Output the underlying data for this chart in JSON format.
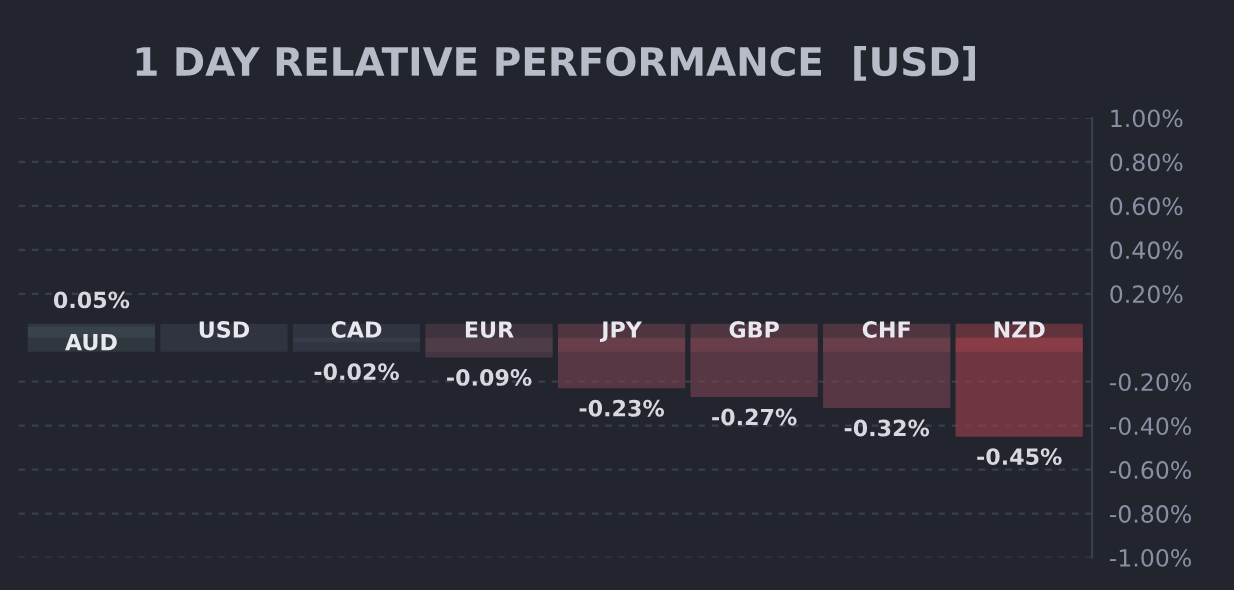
{
  "chart_data": {
    "type": "bar",
    "title": "1 DAY RELATIVE PERFORMANCE  [USD]",
    "categories": [
      "AUD",
      "USD",
      "CAD",
      "EUR",
      "JPY",
      "GBP",
      "CHF",
      "NZD"
    ],
    "values": [
      0.05,
      0,
      -0.02,
      -0.09,
      -0.23,
      -0.27,
      -0.32,
      -0.45
    ],
    "colors": [
      "#3d4a50",
      "#3e4352",
      "#3e4352",
      "#5a4250",
      "#7a4551",
      "#7a4551",
      "#7a4551",
      "#a0434c"
    ],
    "value_labels": [
      "0.05%",
      null,
      "-0.02%",
      "-0.09%",
      "-0.23%",
      "-0.27%",
      "-0.32%",
      "-0.45%"
    ],
    "ylim": [
      -1.0,
      1.0
    ],
    "yticks": [
      {
        "value": 1.0,
        "label": "1.00%"
      },
      {
        "value": 0.8,
        "label": "0.80%"
      },
      {
        "value": 0.6,
        "label": "0.60%"
      },
      {
        "value": 0.4,
        "label": "0.40%"
      },
      {
        "value": 0.2,
        "label": "0.20%"
      },
      {
        "value": -0.2,
        "label": "-0.20%"
      },
      {
        "value": -0.4,
        "label": "-0.40%"
      },
      {
        "value": -0.6,
        "label": "-0.60%"
      },
      {
        "value": -0.8,
        "label": "-0.80%"
      },
      {
        "value": -1.0,
        "label": "-1.00%"
      }
    ],
    "grid": "y",
    "line_style": "dashed",
    "legend": false
  }
}
